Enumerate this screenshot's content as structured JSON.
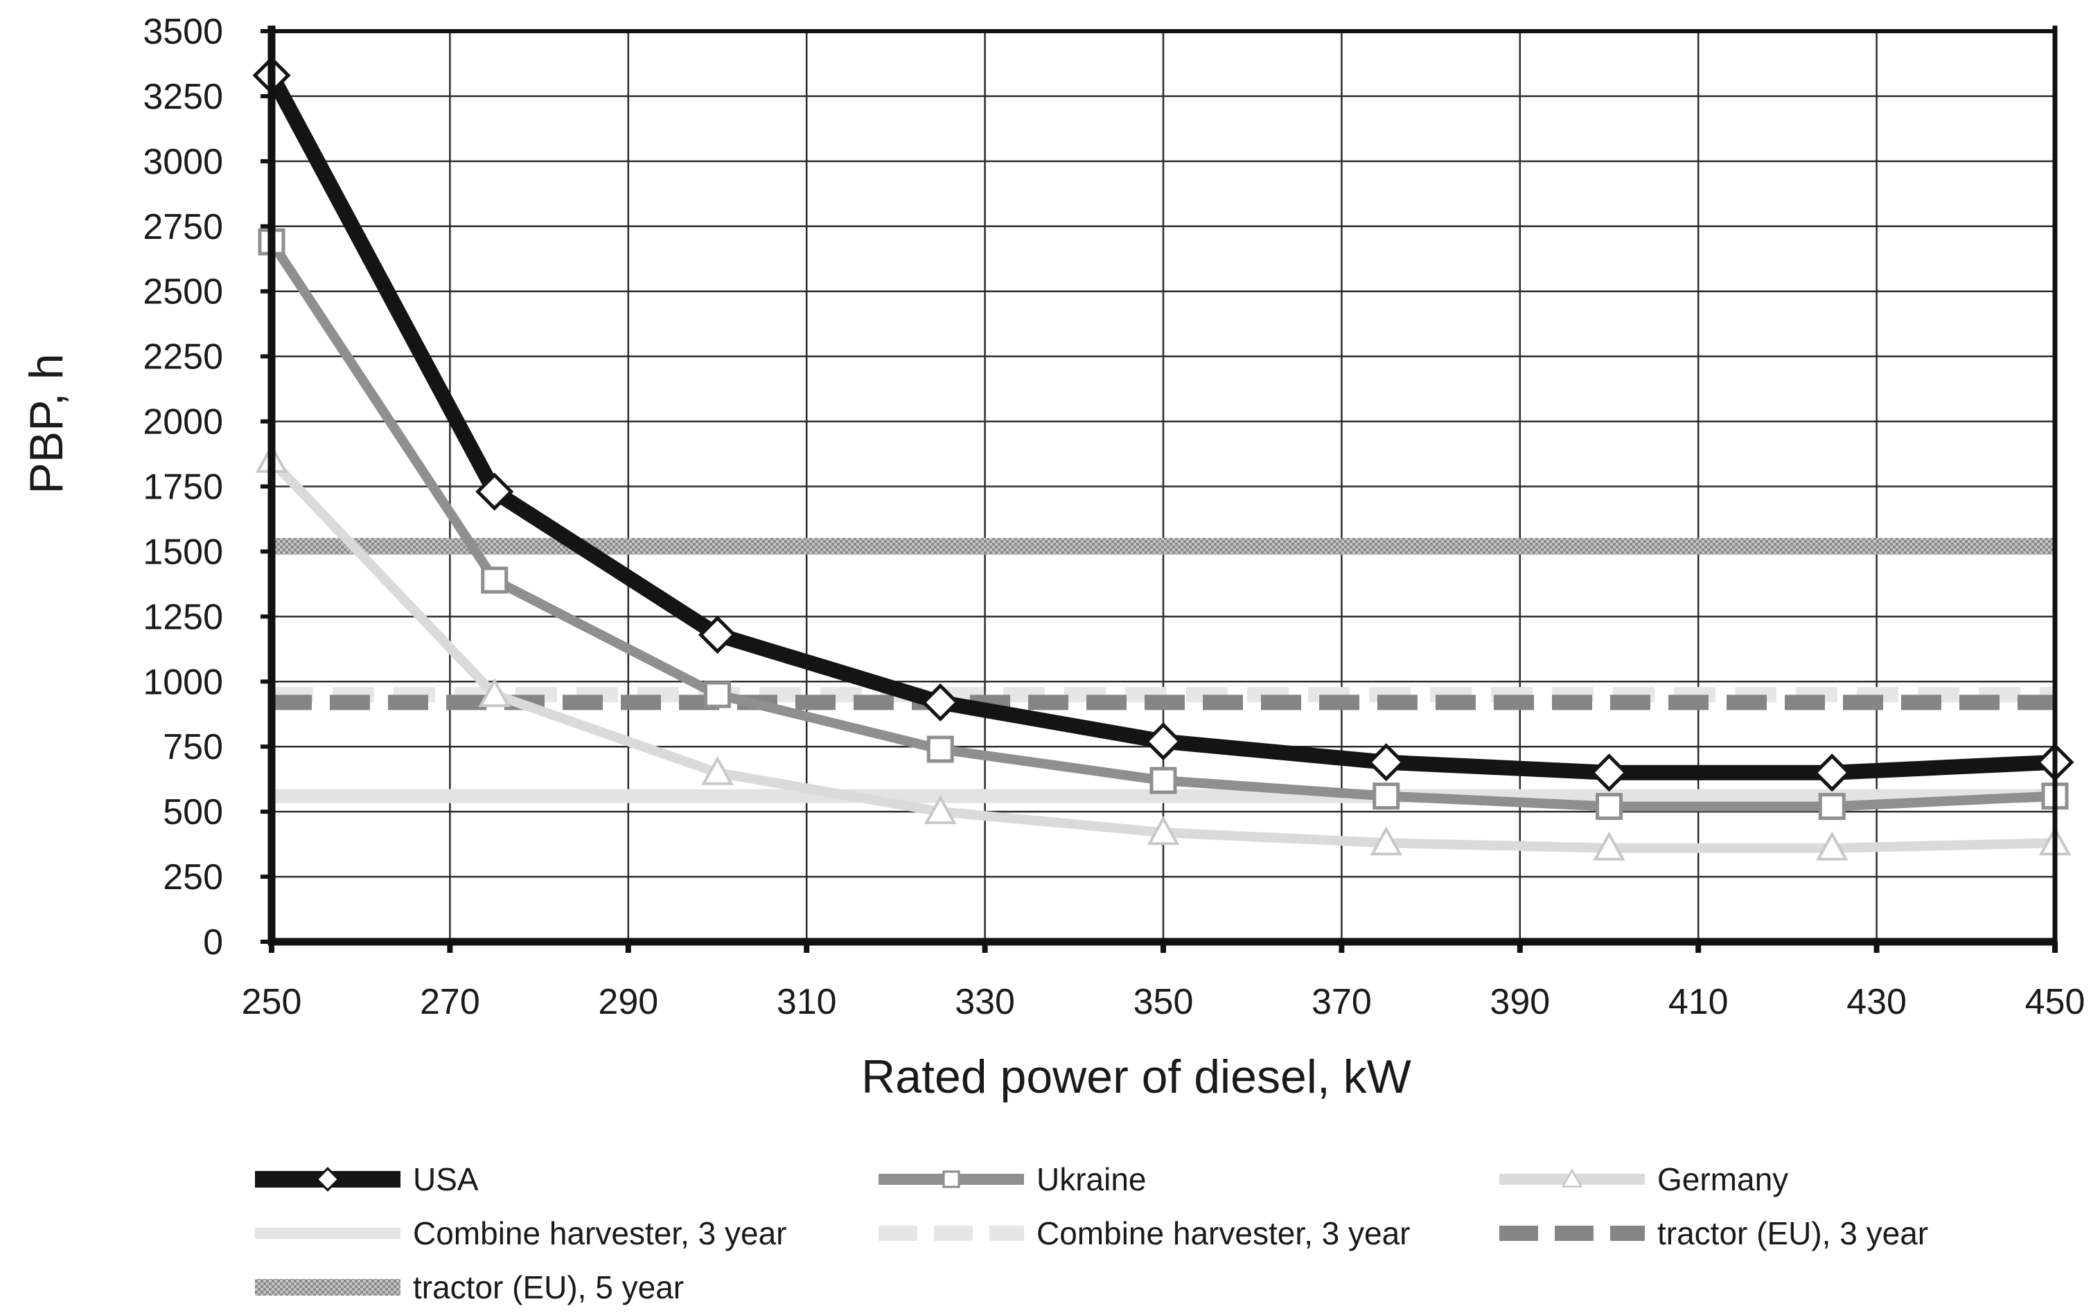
{
  "chart_data": {
    "type": "line",
    "title": "",
    "xlabel": "Rated power of diesel, kW",
    "ylabel": "PBP, h",
    "xlim": [
      250,
      450
    ],
    "ylim": [
      0,
      3500
    ],
    "grid": true,
    "legend_position": "bottom",
    "x_ticks": [
      "250",
      "270",
      "290",
      "310",
      "330",
      "350",
      "370",
      "390",
      "410",
      "430",
      "450"
    ],
    "y_ticks": [
      "0",
      "250",
      "500",
      "750",
      "1000",
      "1250",
      "1500",
      "1750",
      "2000",
      "2250",
      "2500",
      "2750",
      "3000",
      "3250",
      "3500"
    ],
    "x": [
      250,
      275,
      300,
      325,
      350,
      375,
      400,
      425,
      450
    ],
    "series": [
      {
        "name": "USA",
        "marker": "diamond",
        "color": "#141414",
        "dash": "solid",
        "values": [
          3330,
          1730,
          1180,
          920,
          770,
          690,
          650,
          650,
          690
        ]
      },
      {
        "name": "Ukraine",
        "marker": "square",
        "color": "#8f8f8f",
        "dash": "solid",
        "values": [
          2690,
          1390,
          950,
          740,
          620,
          560,
          520,
          520,
          560
        ]
      },
      {
        "name": "Germany",
        "marker": "triangle",
        "color": "#dadada",
        "dash": "solid",
        "values": [
          1850,
          950,
          650,
          500,
          420,
          380,
          360,
          360,
          380
        ]
      },
      {
        "name": "Combine harvester, 3 year",
        "marker": "none",
        "color": "#e3e3e3",
        "dash": "solid",
        "values": [
          560,
          560,
          560,
          560,
          560,
          560,
          560,
          560,
          560
        ]
      },
      {
        "name": "Combine harvester, 3 year",
        "marker": "none",
        "color": "#e6e6e6",
        "dash": "longdash",
        "values": [
          950,
          950,
          950,
          950,
          950,
          950,
          950,
          950,
          950
        ]
      },
      {
        "name": "tractor (EU), 3 year",
        "marker": "none",
        "color": "#858585",
        "dash": "dash",
        "values": [
          920,
          920,
          920,
          920,
          920,
          920,
          920,
          920,
          920
        ]
      },
      {
        "name": "tractor (EU), 5 year",
        "marker": "none",
        "color": "#b4b4b4",
        "dash": "hatched",
        "values": [
          1520,
          1520,
          1520,
          1520,
          1520,
          1520,
          1520,
          1520,
          1520
        ]
      }
    ]
  }
}
